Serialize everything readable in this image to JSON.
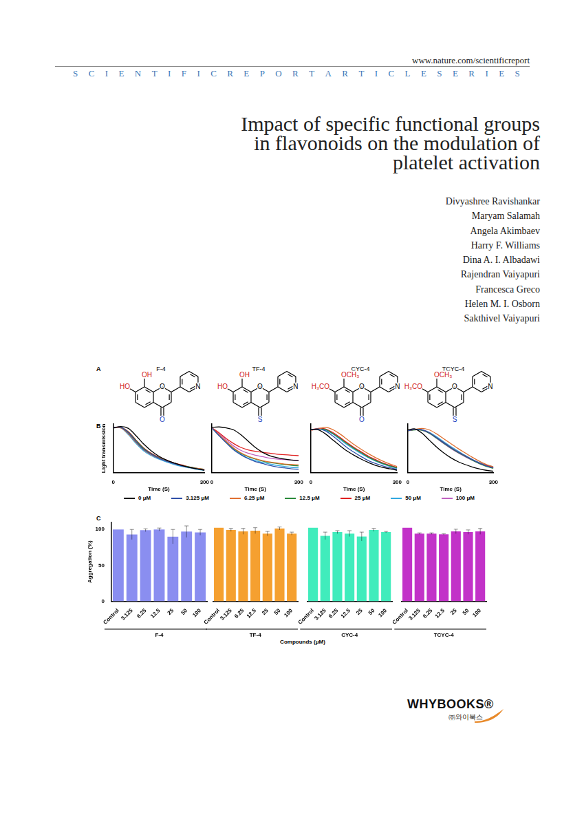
{
  "header": {
    "url": "www.nature.com/scientificreport",
    "series": "SCIENTIFICREPORTARTICLESERIES"
  },
  "title": [
    "Impact of specific functional groups",
    "in flavonoids on the modulation of",
    "platelet activation"
  ],
  "authors": [
    "Divyashree Ravishankar",
    "Maryam Salamah",
    "Angela Akimbaev",
    "Harry F. Williams",
    "Dina A. I. Albadawi",
    "Rajendran Vaiyapuri",
    "Francesca Greco",
    "Helen M. I. Osborn",
    "Sakthivel Vaiyapuri"
  ],
  "figure": {
    "panels": [
      "A",
      "B",
      "C"
    ],
    "structures": [
      {
        "name": "F-4",
        "substituent_8": "OH",
        "substituent_7": "HO",
        "ring_o": "O",
        "carbonyl": "O",
        "n": "N"
      },
      {
        "name": "TF-4",
        "substituent_8": "OH",
        "substituent_7": "HO",
        "ring_o": "O",
        "carbonyl": "S",
        "n": "N"
      },
      {
        "name": "CYC-4",
        "substituent_8": "OCH₃",
        "substituent_7": "H₃CO",
        "ring_o": "O",
        "carbonyl": "O",
        "n": "N"
      },
      {
        "name": "TCYC-4",
        "substituent_8": "OCH₃",
        "substituent_7": "H₃CO",
        "ring_o": "O",
        "carbonyl": "S",
        "n": "N"
      }
    ],
    "x_group_label": "Compounds (μM)"
  },
  "chart_data": [
    {
      "type": "line",
      "x_label": "Time (S)",
      "y_label": "Light transmission",
      "x": [
        0,
        25,
        50,
        75,
        100,
        125,
        150,
        175,
        200,
        225,
        250,
        275,
        300
      ],
      "xlim": [
        0,
        300
      ],
      "xticks": [
        0,
        300
      ],
      "ylim": [
        0,
        100
      ],
      "tick_labels": "x",
      "grid": false,
      "legend": "bottom",
      "series": [
        {
          "name": "0 μM",
          "color": "#000000",
          "values": [
            92,
            95,
            91,
            76,
            59,
            45,
            34,
            26,
            20,
            15,
            11,
            8,
            5
          ]
        },
        {
          "name": "3.125 μM",
          "color": "#2f4fa8",
          "values": [
            93,
            93,
            82,
            64,
            48,
            38,
            30,
            24,
            19,
            14,
            11,
            8,
            6
          ]
        },
        {
          "name": "6.25 μM",
          "color": "#e07030",
          "values": [
            92,
            92,
            80,
            62,
            47,
            37,
            30,
            24,
            19,
            15,
            11,
            9,
            7
          ]
        },
        {
          "name": "12.5 μM",
          "color": "#2a8a3a",
          "values": [
            92,
            93,
            83,
            66,
            50,
            39,
            31,
            25,
            20,
            15,
            12,
            9,
            7
          ]
        },
        {
          "name": "25 μM",
          "color": "#e02020",
          "values": [
            93,
            93,
            84,
            67,
            51,
            40,
            32,
            26,
            20,
            16,
            12,
            9,
            6
          ]
        },
        {
          "name": "50 μM",
          "color": "#30a8e0",
          "values": [
            92,
            92,
            78,
            60,
            45,
            35,
            28,
            22,
            17,
            13,
            10,
            7,
            5
          ]
        },
        {
          "name": "100 μM",
          "color": "#c060c0",
          "values": [
            93,
            93,
            81,
            63,
            47,
            37,
            29,
            23,
            18,
            14,
            11,
            8,
            6
          ]
        }
      ]
    },
    {
      "type": "line",
      "x_label": "Time (S)",
      "x": [
        0,
        25,
        50,
        75,
        100,
        125,
        150,
        175,
        200,
        225,
        250,
        275,
        300
      ],
      "xlim": [
        0,
        300
      ],
      "xticks": [
        0,
        300
      ],
      "ylim": [
        0,
        100
      ],
      "tick_labels": "x",
      "grid": false,
      "series": [
        {
          "name": "0 μM",
          "color": "#000000",
          "values": [
            93,
            94,
            92,
            88,
            78,
            65,
            52,
            42,
            35,
            31,
            28,
            26,
            25
          ]
        },
        {
          "name": "3.125 μM",
          "color": "#2f4fa8",
          "values": [
            92,
            76,
            61,
            47,
            37,
            29,
            23,
            19,
            15,
            12,
            10,
            8,
            7
          ]
        },
        {
          "name": "6.25 μM",
          "color": "#e07030",
          "values": [
            92,
            78,
            64,
            51,
            41,
            34,
            29,
            25,
            22,
            20,
            18,
            17,
            16
          ]
        },
        {
          "name": "12.5 μM",
          "color": "#2a8a3a",
          "values": [
            92,
            77,
            63,
            50,
            40,
            33,
            28,
            24,
            21,
            19,
            17,
            15,
            14
          ]
        },
        {
          "name": "25 μM",
          "color": "#e02020",
          "values": [
            92,
            82,
            70,
            60,
            52,
            47,
            44,
            42,
            40,
            38,
            37,
            36,
            35
          ]
        },
        {
          "name": "50 μM",
          "color": "#30a8e0",
          "values": [
            92,
            77,
            62,
            48,
            38,
            30,
            25,
            21,
            18,
            15,
            13,
            11,
            10
          ]
        },
        {
          "name": "100 μM",
          "color": "#c060c0",
          "values": [
            92,
            80,
            67,
            55,
            46,
            40,
            36,
            33,
            30,
            28,
            27,
            26,
            25
          ]
        }
      ]
    },
    {
      "type": "line",
      "x_label": "Time (S)",
      "x": [
        0,
        25,
        50,
        75,
        100,
        125,
        150,
        175,
        200,
        225,
        250,
        275,
        300
      ],
      "xlim": [
        0,
        300
      ],
      "xticks": [
        0,
        300
      ],
      "ylim": [
        0,
        100
      ],
      "tick_labels": "x",
      "grid": false,
      "series": [
        {
          "name": "0 μM",
          "color": "#000000",
          "values": [
            89,
            88,
            80,
            68,
            56,
            45,
            36,
            28,
            21,
            15,
            11,
            8,
            5
          ]
        },
        {
          "name": "3.125 μM",
          "color": "#2f4fa8",
          "values": [
            88,
            90,
            86,
            76,
            64,
            52,
            42,
            33,
            25,
            19,
            14,
            10,
            7
          ]
        },
        {
          "name": "6.25 μM",
          "color": "#e07030",
          "values": [
            87,
            90,
            93,
            89,
            80,
            69,
            58,
            48,
            39,
            31,
            24,
            18,
            13
          ]
        },
        {
          "name": "12.5 μM",
          "color": "#2a8a3a",
          "values": [
            88,
            90,
            89,
            81,
            71,
            60,
            50,
            41,
            32,
            25,
            19,
            14,
            10
          ]
        },
        {
          "name": "25 μM",
          "color": "#e02020",
          "values": [
            88,
            91,
            90,
            83,
            73,
            62,
            52,
            43,
            34,
            27,
            20,
            15,
            11
          ]
        },
        {
          "name": "50 μM",
          "color": "#30a8e0",
          "values": [
            88,
            90,
            87,
            80,
            69,
            58,
            48,
            39,
            31,
            24,
            18,
            13,
            9
          ]
        },
        {
          "name": "100 μM",
          "color": "#c060c0",
          "values": [
            87,
            90,
            88,
            82,
            72,
            61,
            51,
            42,
            33,
            26,
            20,
            15,
            10
          ]
        }
      ]
    },
    {
      "type": "line",
      "x_label": "Time (S)",
      "x": [
        0,
        25,
        50,
        75,
        100,
        125,
        150,
        175,
        200,
        225,
        250,
        275,
        300
      ],
      "xlim": [
        0,
        300
      ],
      "xticks": [
        0,
        300
      ],
      "ylim": [
        0,
        100
      ],
      "tick_labels": "x",
      "grid": false,
      "series": [
        {
          "name": "0 μM",
          "color": "#000000",
          "values": [
            88,
            90,
            81,
            67,
            53,
            41,
            31,
            23,
            17,
            12,
            8,
            5,
            3
          ]
        },
        {
          "name": "3.125 μM",
          "color": "#2f4fa8",
          "values": [
            86,
            89,
            88,
            82,
            72,
            62,
            52,
            43,
            35,
            27,
            20,
            14,
            10
          ]
        },
        {
          "name": "6.25 μM",
          "color": "#e07030",
          "values": [
            86,
            89,
            91,
            88,
            80,
            70,
            60,
            50,
            41,
            32,
            24,
            17,
            12
          ]
        },
        {
          "name": "12.5 μM",
          "color": "#2a8a3a",
          "values": [
            86,
            88,
            87,
            81,
            71,
            61,
            51,
            42,
            34,
            26,
            19,
            13,
            9
          ]
        },
        {
          "name": "25 μM",
          "color": "#e02020",
          "values": [
            86,
            89,
            88,
            82,
            72,
            62,
            52,
            43,
            35,
            27,
            20,
            15,
            11
          ]
        },
        {
          "name": "50 μM",
          "color": "#30a8e0",
          "values": [
            86,
            89,
            88,
            83,
            74,
            64,
            54,
            45,
            36,
            28,
            21,
            16,
            12
          ]
        },
        {
          "name": "100 μM",
          "color": "#c060c0",
          "values": [
            87,
            89,
            87,
            81,
            71,
            60,
            50,
            41,
            33,
            26,
            19,
            14,
            10
          ]
        }
      ]
    },
    {
      "type": "bar",
      "x_label": "F-4",
      "y_label": "Aggregation (%)",
      "categories": [
        "Control",
        "3.125",
        "6.25",
        "12.5",
        "25",
        "50",
        "100"
      ],
      "values": [
        100,
        93,
        99,
        100,
        90,
        97,
        96
      ],
      "errors": [
        0,
        7,
        2,
        2,
        10,
        8,
        4
      ],
      "color": "#8a8ef0",
      "ylim": [
        0,
        110
      ],
      "yticks": [
        0,
        50,
        100
      ],
      "grid": false
    },
    {
      "type": "bar",
      "x_label": "TF-4",
      "categories": [
        "Control",
        "3.125",
        "6.25",
        "12.5",
        "25",
        "50",
        "100"
      ],
      "values": [
        100,
        97,
        95,
        96,
        92,
        99,
        92
      ],
      "errors": [
        0,
        2,
        4,
        4,
        3,
        2,
        2
      ],
      "color": "#f5a030",
      "ylim": [
        0,
        110
      ],
      "yticks": [
        0,
        50,
        100
      ],
      "tick_labels": "x",
      "grid": false
    },
    {
      "type": "bar",
      "x_label": "CYC-4",
      "categories": [
        "Control",
        "3.125",
        "6.25",
        "12.5",
        "25",
        "50",
        "100"
      ],
      "values": [
        100,
        89,
        94,
        92,
        88,
        97,
        94
      ],
      "errors": [
        0,
        5,
        2,
        4,
        6,
        2,
        1
      ],
      "color": "#40ecbc",
      "ylim": [
        0,
        110
      ],
      "yticks": [
        0,
        50,
        100
      ],
      "tick_labels": "x",
      "grid": false
    },
    {
      "type": "bar",
      "x_label": "TCYC-4",
      "categories": [
        "Control",
        "3.125",
        "6.25",
        "12.5",
        "25",
        "50",
        "100"
      ],
      "values": [
        100,
        92,
        92,
        91,
        95,
        94,
        95
      ],
      "errors": [
        0,
        1,
        1,
        1,
        3,
        3,
        4
      ],
      "color": "#c232c8",
      "ylim": [
        0,
        110
      ],
      "yticks": [
        0,
        50,
        100
      ],
      "tick_labels": "x",
      "grid": false
    }
  ],
  "publisher": {
    "name": "WHYBOOKS®",
    "korean": "㈜와이북스"
  }
}
